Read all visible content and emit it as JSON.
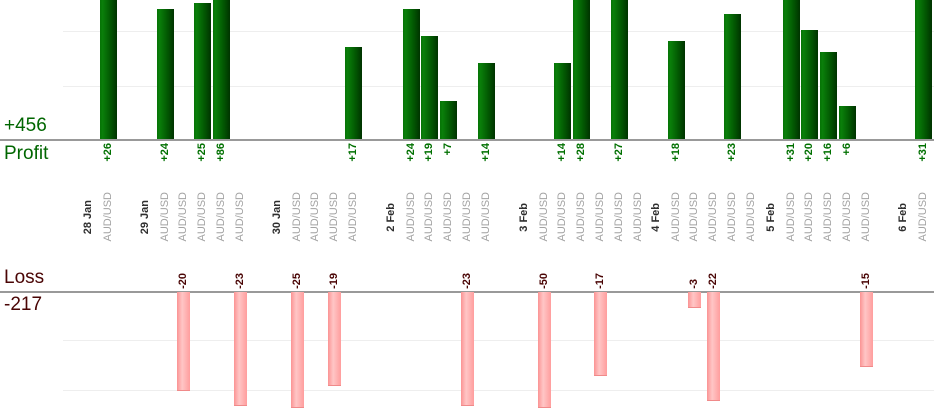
{
  "summary": {
    "profit_total": "+456",
    "profit_label": "Profit",
    "loss_label": "Loss",
    "loss_total": "-217"
  },
  "chart_data": {
    "type": "bar",
    "title": "",
    "xlabel": "",
    "ylabel": "",
    "instrument": "AUD/USD",
    "legend": "none",
    "grid": "horizontal, every 10 units",
    "layout_hint": "profit bars grow up from upper baseline (clipped at image top), loss bars grow down from lower baseline (clipped near image bottom); every trade column labeled AUD/USD, rotated 90deg",
    "profit_total": 456,
    "loss_total": -217,
    "categories": [
      "28 Jan",
      "29 Jan",
      "30 Jan",
      "2 Feb",
      "3 Feb",
      "4 Feb",
      "5 Feb",
      "6 Feb"
    ],
    "groups": [
      {
        "date": "28 Jan",
        "trades": [
          26
        ]
      },
      {
        "date": "29 Jan",
        "trades": [
          24,
          -20,
          25,
          86,
          -23
        ]
      },
      {
        "date": "30 Jan",
        "trades": [
          -25,
          0,
          -19,
          17
        ]
      },
      {
        "date": "2 Feb",
        "trades": [
          24,
          19,
          7,
          -23,
          14
        ]
      },
      {
        "date": "3 Feb",
        "trades": [
          -50,
          14,
          28,
          -17,
          27,
          0
        ]
      },
      {
        "date": "4 Feb",
        "trades": [
          18,
          -3,
          -22,
          23,
          0
        ]
      },
      {
        "date": "5 Feb",
        "trades": [
          31,
          20,
          16,
          6,
          -15
        ]
      },
      {
        "date": "6 Feb",
        "trades": [
          31
        ]
      }
    ],
    "colors": {
      "profit_bar": "#006600",
      "loss_bar": "#ff9d9d",
      "profit_text": "#007000",
      "loss_text": "#4a0505",
      "date_text": "#2e2e2e",
      "instrument_text": "#a3a3a3",
      "baseline": "#999999",
      "gridline": "#eeeeee"
    }
  }
}
